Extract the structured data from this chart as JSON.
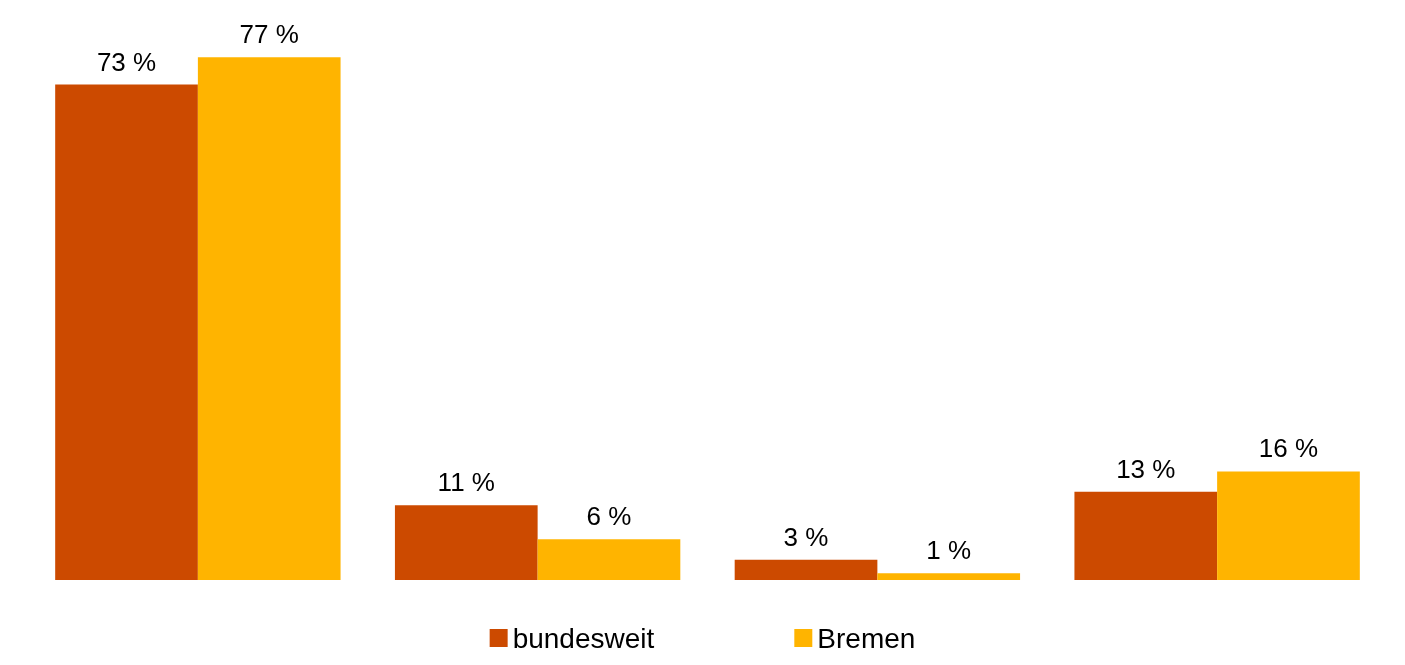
{
  "chart_data": {
    "type": "bar",
    "categories": [
      null,
      null,
      null,
      null
    ],
    "series": [
      {
        "name": "bundesweit",
        "color": "#cc4a00",
        "values": [
          73,
          11,
          3,
          13
        ],
        "value_labels": [
          "73 %",
          "11 %",
          "3 %",
          "13 %"
        ]
      },
      {
        "name": "Bremen",
        "color": "#ffb400",
        "values": [
          77,
          6,
          1,
          16
        ],
        "value_labels": [
          "77 %",
          "6 %",
          "1 %",
          "16 %"
        ]
      }
    ],
    "legend": "bottom",
    "grid": false,
    "tick_labels": false
  }
}
